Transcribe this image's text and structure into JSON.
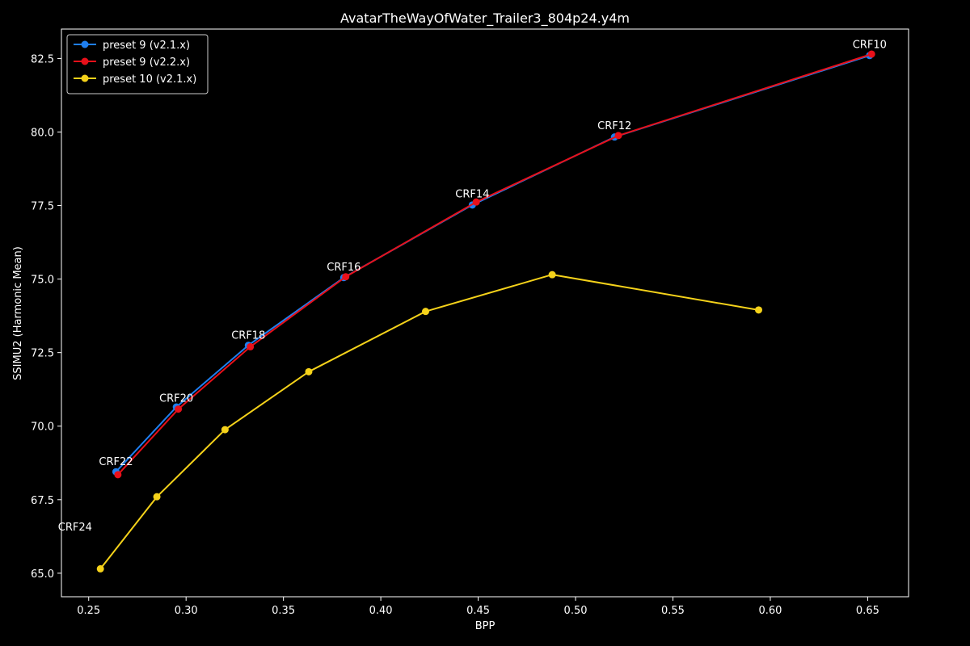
{
  "chart_data": {
    "type": "line",
    "title": "AvatarTheWayOfWater_Trailer3_804p24.y4m",
    "xlabel": "BPP",
    "ylabel": "SSIMU2 (Harmonic Mean)",
    "xlim": [
      0.236,
      0.671
    ],
    "ylim": [
      64.2,
      83.5
    ],
    "xticks": [
      0.25,
      0.3,
      0.35,
      0.4,
      0.45,
      0.5,
      0.55,
      0.6,
      0.65
    ],
    "xtick_labels": [
      "0.25",
      "0.30",
      "0.35",
      "0.40",
      "0.45",
      "0.50",
      "0.55",
      "0.60",
      "0.65"
    ],
    "yticks": [
      65.0,
      67.5,
      70.0,
      72.5,
      75.0,
      77.5,
      80.0,
      82.5
    ],
    "ytick_labels": [
      "65.0",
      "67.5",
      "70.0",
      "72.5",
      "75.0",
      "77.5",
      "80.0",
      "82.5"
    ],
    "grid": false,
    "legend_position": "top-left",
    "series": [
      {
        "name": "preset 9 (v2.1.x)",
        "color": "#1f7ff0",
        "x": [
          0.264,
          0.295,
          0.332,
          0.381,
          0.447,
          0.52,
          0.651
        ],
        "y": [
          68.45,
          70.65,
          72.75,
          75.05,
          77.52,
          79.83,
          82.6
        ]
      },
      {
        "name": "preset 9 (v2.2.x)",
        "color": "#e8101a",
        "x": [
          0.265,
          0.296,
          0.333,
          0.382,
          0.449,
          0.522,
          0.652
        ],
        "y": [
          68.35,
          70.58,
          72.7,
          75.08,
          77.62,
          79.88,
          82.65
        ]
      },
      {
        "name": "preset 10 (v2.1.x)",
        "color": "#f5d21a",
        "x": [
          0.256,
          0.285,
          0.32,
          0.363,
          0.423,
          0.488,
          0.594
        ],
        "y": [
          65.15,
          67.6,
          69.88,
          71.85,
          73.9,
          75.15,
          73.95
        ]
      }
    ],
    "annotations": [
      {
        "text": "CRF24",
        "x": 0.243,
        "y": 66.45
      },
      {
        "text": "CRF22",
        "x": 0.264,
        "y": 68.67
      },
      {
        "text": "CRF20",
        "x": 0.295,
        "y": 70.83
      },
      {
        "text": "CRF18",
        "x": 0.332,
        "y": 72.97
      },
      {
        "text": "CRF16",
        "x": 0.381,
        "y": 75.29
      },
      {
        "text": "CRF14",
        "x": 0.447,
        "y": 77.78
      },
      {
        "text": "CRF12",
        "x": 0.52,
        "y": 80.1
      },
      {
        "text": "CRF10",
        "x": 0.651,
        "y": 82.85
      }
    ],
    "colors": {
      "background": "#000000",
      "axes": "#ffffff",
      "text": "#ffffff",
      "legend_bg": "#000000",
      "legend_border": "#cccccc"
    }
  }
}
